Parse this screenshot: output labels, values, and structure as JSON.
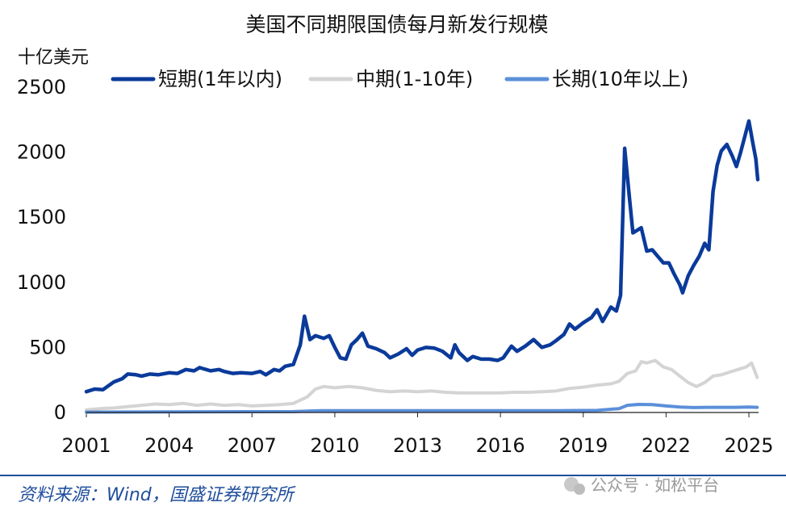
{
  "chart_data": {
    "type": "line",
    "title": "美国不同期限国债每月新发行规模",
    "ylabel": "十亿美元",
    "xlabel": "",
    "ylim": [
      0,
      2500
    ],
    "xlim": [
      2001,
      2025.35
    ],
    "yticks": [
      0,
      500,
      1000,
      1500,
      2000,
      2500
    ],
    "xticks": [
      2001,
      2004,
      2007,
      2010,
      2013,
      2016,
      2019,
      2022,
      2025
    ],
    "legend_position": "top",
    "grid": false,
    "series": [
      {
        "name": "短期(1年以内)",
        "color": "#0a3a9a",
        "points": [
          [
            2001.0,
            160
          ],
          [
            2001.3,
            180
          ],
          [
            2001.6,
            175
          ],
          [
            2002.0,
            235
          ],
          [
            2002.3,
            260
          ],
          [
            2002.5,
            295
          ],
          [
            2002.8,
            290
          ],
          [
            2003.0,
            280
          ],
          [
            2003.3,
            295
          ],
          [
            2003.6,
            290
          ],
          [
            2004.0,
            305
          ],
          [
            2004.3,
            300
          ],
          [
            2004.6,
            330
          ],
          [
            2004.9,
            320
          ],
          [
            2005.1,
            345
          ],
          [
            2005.5,
            320
          ],
          [
            2005.8,
            330
          ],
          [
            2006.0,
            315
          ],
          [
            2006.3,
            300
          ],
          [
            2006.6,
            305
          ],
          [
            2007.0,
            300
          ],
          [
            2007.3,
            315
          ],
          [
            2007.5,
            290
          ],
          [
            2007.8,
            330
          ],
          [
            2008.0,
            320
          ],
          [
            2008.2,
            355
          ],
          [
            2008.5,
            370
          ],
          [
            2008.75,
            520
          ],
          [
            2008.9,
            740
          ],
          [
            2009.1,
            560
          ],
          [
            2009.3,
            590
          ],
          [
            2009.6,
            570
          ],
          [
            2009.8,
            590
          ],
          [
            2010.0,
            500
          ],
          [
            2010.2,
            420
          ],
          [
            2010.4,
            410
          ],
          [
            2010.6,
            520
          ],
          [
            2010.8,
            560
          ],
          [
            2011.0,
            610
          ],
          [
            2011.2,
            510
          ],
          [
            2011.5,
            490
          ],
          [
            2011.8,
            460
          ],
          [
            2012.0,
            420
          ],
          [
            2012.3,
            450
          ],
          [
            2012.6,
            490
          ],
          [
            2012.8,
            440
          ],
          [
            2013.0,
            480
          ],
          [
            2013.3,
            500
          ],
          [
            2013.6,
            495
          ],
          [
            2013.9,
            470
          ],
          [
            2014.2,
            420
          ],
          [
            2014.35,
            520
          ],
          [
            2014.5,
            460
          ],
          [
            2014.8,
            400
          ],
          [
            2015.0,
            430
          ],
          [
            2015.3,
            410
          ],
          [
            2015.6,
            410
          ],
          [
            2015.9,
            400
          ],
          [
            2016.1,
            420
          ],
          [
            2016.4,
            510
          ],
          [
            2016.6,
            470
          ],
          [
            2016.9,
            510
          ],
          [
            2017.2,
            560
          ],
          [
            2017.5,
            500
          ],
          [
            2017.8,
            520
          ],
          [
            2018.0,
            550
          ],
          [
            2018.3,
            600
          ],
          [
            2018.5,
            680
          ],
          [
            2018.7,
            640
          ],
          [
            2019.0,
            690
          ],
          [
            2019.3,
            730
          ],
          [
            2019.5,
            790
          ],
          [
            2019.7,
            700
          ],
          [
            2020.0,
            810
          ],
          [
            2020.2,
            780
          ],
          [
            2020.35,
            900
          ],
          [
            2020.5,
            2030
          ],
          [
            2020.65,
            1700
          ],
          [
            2020.8,
            1380
          ],
          [
            2020.95,
            1400
          ],
          [
            2021.1,
            1420
          ],
          [
            2021.3,
            1240
          ],
          [
            2021.5,
            1250
          ],
          [
            2021.7,
            1200
          ],
          [
            2021.9,
            1150
          ],
          [
            2022.1,
            1150
          ],
          [
            2022.3,
            1060
          ],
          [
            2022.5,
            980
          ],
          [
            2022.6,
            920
          ],
          [
            2022.8,
            1050
          ],
          [
            2023.0,
            1130
          ],
          [
            2023.2,
            1200
          ],
          [
            2023.4,
            1300
          ],
          [
            2023.55,
            1250
          ],
          [
            2023.7,
            1700
          ],
          [
            2023.85,
            1900
          ],
          [
            2024.0,
            2010
          ],
          [
            2024.2,
            2060
          ],
          [
            2024.4,
            1970
          ],
          [
            2024.55,
            1890
          ],
          [
            2024.7,
            2000
          ],
          [
            2024.85,
            2120
          ],
          [
            2025.0,
            2240
          ],
          [
            2025.15,
            2060
          ],
          [
            2025.25,
            1950
          ],
          [
            2025.32,
            1790
          ]
        ]
      },
      {
        "name": "中期(1-10年)",
        "color": "#d4d4d4",
        "points": [
          [
            2001.0,
            20
          ],
          [
            2001.5,
            30
          ],
          [
            2002.0,
            35
          ],
          [
            2002.5,
            45
          ],
          [
            2003.0,
            55
          ],
          [
            2003.5,
            65
          ],
          [
            2004.0,
            60
          ],
          [
            2004.5,
            70
          ],
          [
            2005.0,
            55
          ],
          [
            2005.5,
            65
          ],
          [
            2006.0,
            55
          ],
          [
            2006.5,
            60
          ],
          [
            2007.0,
            50
          ],
          [
            2007.5,
            55
          ],
          [
            2008.0,
            60
          ],
          [
            2008.5,
            70
          ],
          [
            2009.0,
            120
          ],
          [
            2009.3,
            180
          ],
          [
            2009.6,
            200
          ],
          [
            2010.0,
            190
          ],
          [
            2010.5,
            200
          ],
          [
            2011.0,
            190
          ],
          [
            2011.5,
            170
          ],
          [
            2012.0,
            160
          ],
          [
            2012.5,
            165
          ],
          [
            2013.0,
            160
          ],
          [
            2013.5,
            165
          ],
          [
            2014.0,
            155
          ],
          [
            2014.5,
            150
          ],
          [
            2015.0,
            150
          ],
          [
            2015.5,
            150
          ],
          [
            2016.0,
            150
          ],
          [
            2016.5,
            155
          ],
          [
            2017.0,
            155
          ],
          [
            2017.5,
            160
          ],
          [
            2018.0,
            165
          ],
          [
            2018.5,
            185
          ],
          [
            2019.0,
            195
          ],
          [
            2019.5,
            210
          ],
          [
            2020.0,
            220
          ],
          [
            2020.3,
            240
          ],
          [
            2020.6,
            300
          ],
          [
            2020.9,
            320
          ],
          [
            2021.1,
            390
          ],
          [
            2021.3,
            380
          ],
          [
            2021.6,
            400
          ],
          [
            2021.9,
            350
          ],
          [
            2022.2,
            330
          ],
          [
            2022.5,
            280
          ],
          [
            2022.8,
            230
          ],
          [
            2023.1,
            200
          ],
          [
            2023.4,
            230
          ],
          [
            2023.7,
            280
          ],
          [
            2024.0,
            290
          ],
          [
            2024.3,
            310
          ],
          [
            2024.6,
            330
          ],
          [
            2024.9,
            350
          ],
          [
            2025.1,
            380
          ],
          [
            2025.3,
            270
          ]
        ]
      },
      {
        "name": "长期(10年以上)",
        "color": "#5b8fd9",
        "points": [
          [
            2001.0,
            3
          ],
          [
            2004.0,
            5
          ],
          [
            2007.0,
            6
          ],
          [
            2008.5,
            7
          ],
          [
            2009.5,
            14
          ],
          [
            2012.0,
            14
          ],
          [
            2015.0,
            14
          ],
          [
            2018.0,
            14
          ],
          [
            2019.5,
            16
          ],
          [
            2020.3,
            30
          ],
          [
            2020.6,
            55
          ],
          [
            2021.0,
            62
          ],
          [
            2021.5,
            60
          ],
          [
            2022.0,
            50
          ],
          [
            2022.5,
            42
          ],
          [
            2023.0,
            38
          ],
          [
            2023.5,
            40
          ],
          [
            2024.0,
            40
          ],
          [
            2024.5,
            40
          ],
          [
            2025.0,
            42
          ],
          [
            2025.3,
            40
          ]
        ]
      }
    ]
  },
  "footer": {
    "source": "资料来源：Wind，国盛证券研究所",
    "watermark": "公众号 · 如松平台"
  }
}
